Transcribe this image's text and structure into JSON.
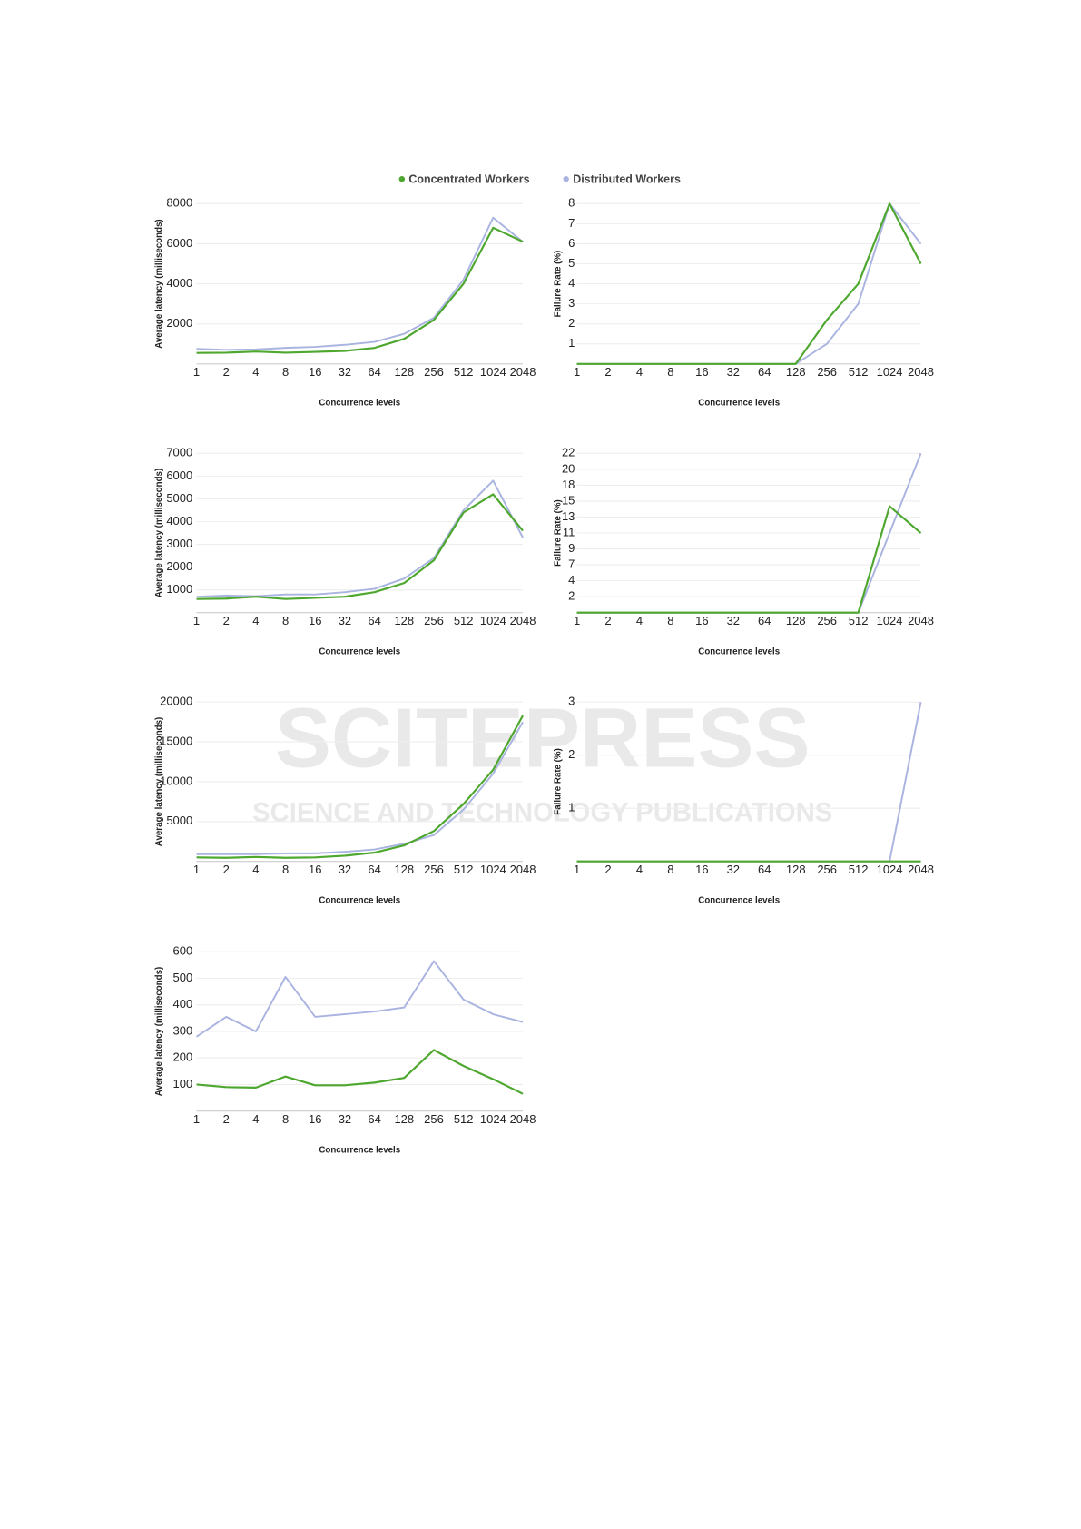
{
  "legend": [
    {
      "name": "Concentrated Workers",
      "color": "#4ea72e"
    },
    {
      "name": "Distributed Workers",
      "color": "#aab4e0"
    }
  ],
  "watermark": {
    "title": "SCITEPRESS",
    "subtitle": "SCIENCE AND TECHNOLOGY PUBLICATIONS"
  },
  "chart_data": [
    {
      "type": "line",
      "x_label": "Concurrence levels",
      "y_label": "Average latency (milliseconds)",
      "categories": [
        "1",
        "2",
        "4",
        "8",
        "16",
        "32",
        "64",
        "128",
        "256",
        "512",
        "1024",
        "2048"
      ],
      "ylim": [
        0,
        8000
      ],
      "yticks": [
        2000,
        4000,
        6000,
        8000
      ],
      "grid": true,
      "series": [
        {
          "color": "#aab4e0",
          "values": [
            750,
            700,
            720,
            800,
            850,
            950,
            1100,
            1500,
            2300,
            4200,
            7300,
            6100
          ]
        },
        {
          "color": "#4ea72e",
          "values": [
            550,
            560,
            620,
            560,
            600,
            650,
            800,
            1250,
            2200,
            4000,
            6800,
            6100
          ]
        }
      ]
    },
    {
      "type": "line",
      "x_label": "Concurrence levels",
      "y_label": "Failure Rate (%)",
      "categories": [
        "1",
        "2",
        "4",
        "8",
        "16",
        "32",
        "64",
        "128",
        "256",
        "512",
        "1024",
        "2048"
      ],
      "ylim": [
        0,
        8
      ],
      "yticks": [
        1,
        2,
        3,
        4,
        5,
        6,
        7,
        8
      ],
      "grid": true,
      "series": [
        {
          "color": "#aab4e0",
          "values": [
            0,
            0,
            0,
            0,
            0,
            0,
            0,
            0,
            1,
            3,
            8,
            6
          ]
        },
        {
          "color": "#4ea72e",
          "values": [
            0,
            0,
            0,
            0,
            0,
            0,
            0,
            0,
            2.2,
            4,
            8,
            5
          ]
        }
      ]
    },
    {
      "type": "line",
      "x_label": "Concurrence levels",
      "y_label": "Average latency (milliseconds)",
      "categories": [
        "1",
        "2",
        "4",
        "8",
        "16",
        "32",
        "64",
        "128",
        "256",
        "512",
        "1024",
        "2048"
      ],
      "ylim": [
        0,
        7000
      ],
      "yticks": [
        1000,
        2000,
        3000,
        4000,
        5000,
        6000,
        7000
      ],
      "grid": true,
      "series": [
        {
          "color": "#aab4e0",
          "values": [
            700,
            750,
            720,
            800,
            800,
            900,
            1050,
            1500,
            2400,
            4500,
            5800,
            3300
          ]
        },
        {
          "color": "#4ea72e",
          "values": [
            600,
            620,
            700,
            600,
            650,
            700,
            900,
            1300,
            2300,
            4400,
            5200,
            3600
          ]
        }
      ]
    },
    {
      "type": "line",
      "x_label": "Concurrence levels",
      "y_label": "Failure Rate (%)",
      "categories": [
        "1",
        "2",
        "4",
        "8",
        "16",
        "32",
        "64",
        "128",
        "256",
        "512",
        "1024",
        "2048"
      ],
      "ylim": [
        0,
        22
      ],
      "yticks": [
        {
          "value": 2.2,
          "label": "2"
        },
        {
          "value": 4.4,
          "label": "4"
        },
        {
          "value": 6.6,
          "label": "7"
        },
        {
          "value": 8.8,
          "label": "9"
        },
        11,
        {
          "value": 13.2,
          "label": "13"
        },
        {
          "value": 15.4,
          "label": "15"
        },
        {
          "value": 17.6,
          "label": "18"
        },
        {
          "value": 19.8,
          "label": "20"
        },
        22
      ],
      "grid": true,
      "series": [
        {
          "color": "#aab4e0",
          "values": [
            0,
            0,
            0,
            0,
            0,
            0,
            0,
            0,
            0,
            0,
            11,
            22
          ]
        },
        {
          "color": "#4ea72e",
          "values": [
            0,
            0,
            0,
            0,
            0,
            0,
            0,
            0,
            0,
            0,
            14.7,
            11
          ]
        }
      ]
    },
    {
      "type": "line",
      "x_label": "Concurrence levels",
      "y_label": "Average latency (milliseconds)",
      "categories": [
        "1",
        "2",
        "4",
        "8",
        "16",
        "32",
        "64",
        "128",
        "256",
        "512",
        "1024",
        "2048"
      ],
      "ylim": [
        0,
        20000
      ],
      "yticks": [
        5000,
        10000,
        15000,
        20000
      ],
      "grid": true,
      "series": [
        {
          "color": "#aab4e0",
          "values": [
            900,
            900,
            900,
            1000,
            1000,
            1200,
            1500,
            2200,
            3300,
            6500,
            11000,
            17500
          ]
        },
        {
          "color": "#4ea72e",
          "values": [
            500,
            450,
            550,
            450,
            500,
            700,
            1100,
            2000,
            3800,
            7200,
            11500,
            18300
          ]
        }
      ]
    },
    {
      "type": "line",
      "x_label": "Concurrence levels",
      "y_label": "Failure Rate (%)",
      "categories": [
        "1",
        "2",
        "4",
        "8",
        "16",
        "32",
        "64",
        "128",
        "256",
        "512",
        "1024",
        "2048"
      ],
      "ylim": [
        0,
        3
      ],
      "yticks": [
        1,
        2,
        3
      ],
      "grid": true,
      "series": [
        {
          "color": "#aab4e0",
          "values": [
            0,
            0,
            0,
            0,
            0,
            0,
            0,
            0,
            0,
            0,
            0,
            3
          ]
        },
        {
          "color": "#4ea72e",
          "values": [
            0,
            0,
            0,
            0,
            0,
            0,
            0,
            0,
            0,
            0,
            0,
            0
          ]
        }
      ]
    },
    {
      "type": "line",
      "x_label": "Concurrence levels",
      "y_label": "Average latency (milliseconds)",
      "categories": [
        "1",
        "2",
        "4",
        "8",
        "16",
        "32",
        "64",
        "128",
        "256",
        "512",
        "1024",
        "2048"
      ],
      "ylim": [
        0,
        600
      ],
      "yticks": [
        100,
        200,
        300,
        400,
        500,
        600
      ],
      "grid": true,
      "series": [
        {
          "color": "#aab4e0",
          "values": [
            280,
            355,
            300,
            505,
            355,
            365,
            375,
            390,
            565,
            420,
            365,
            335
          ]
        },
        {
          "color": "#4ea72e",
          "values": [
            100,
            90,
            88,
            130,
            97,
            97,
            107,
            125,
            230,
            170,
            120,
            65
          ]
        }
      ]
    }
  ]
}
